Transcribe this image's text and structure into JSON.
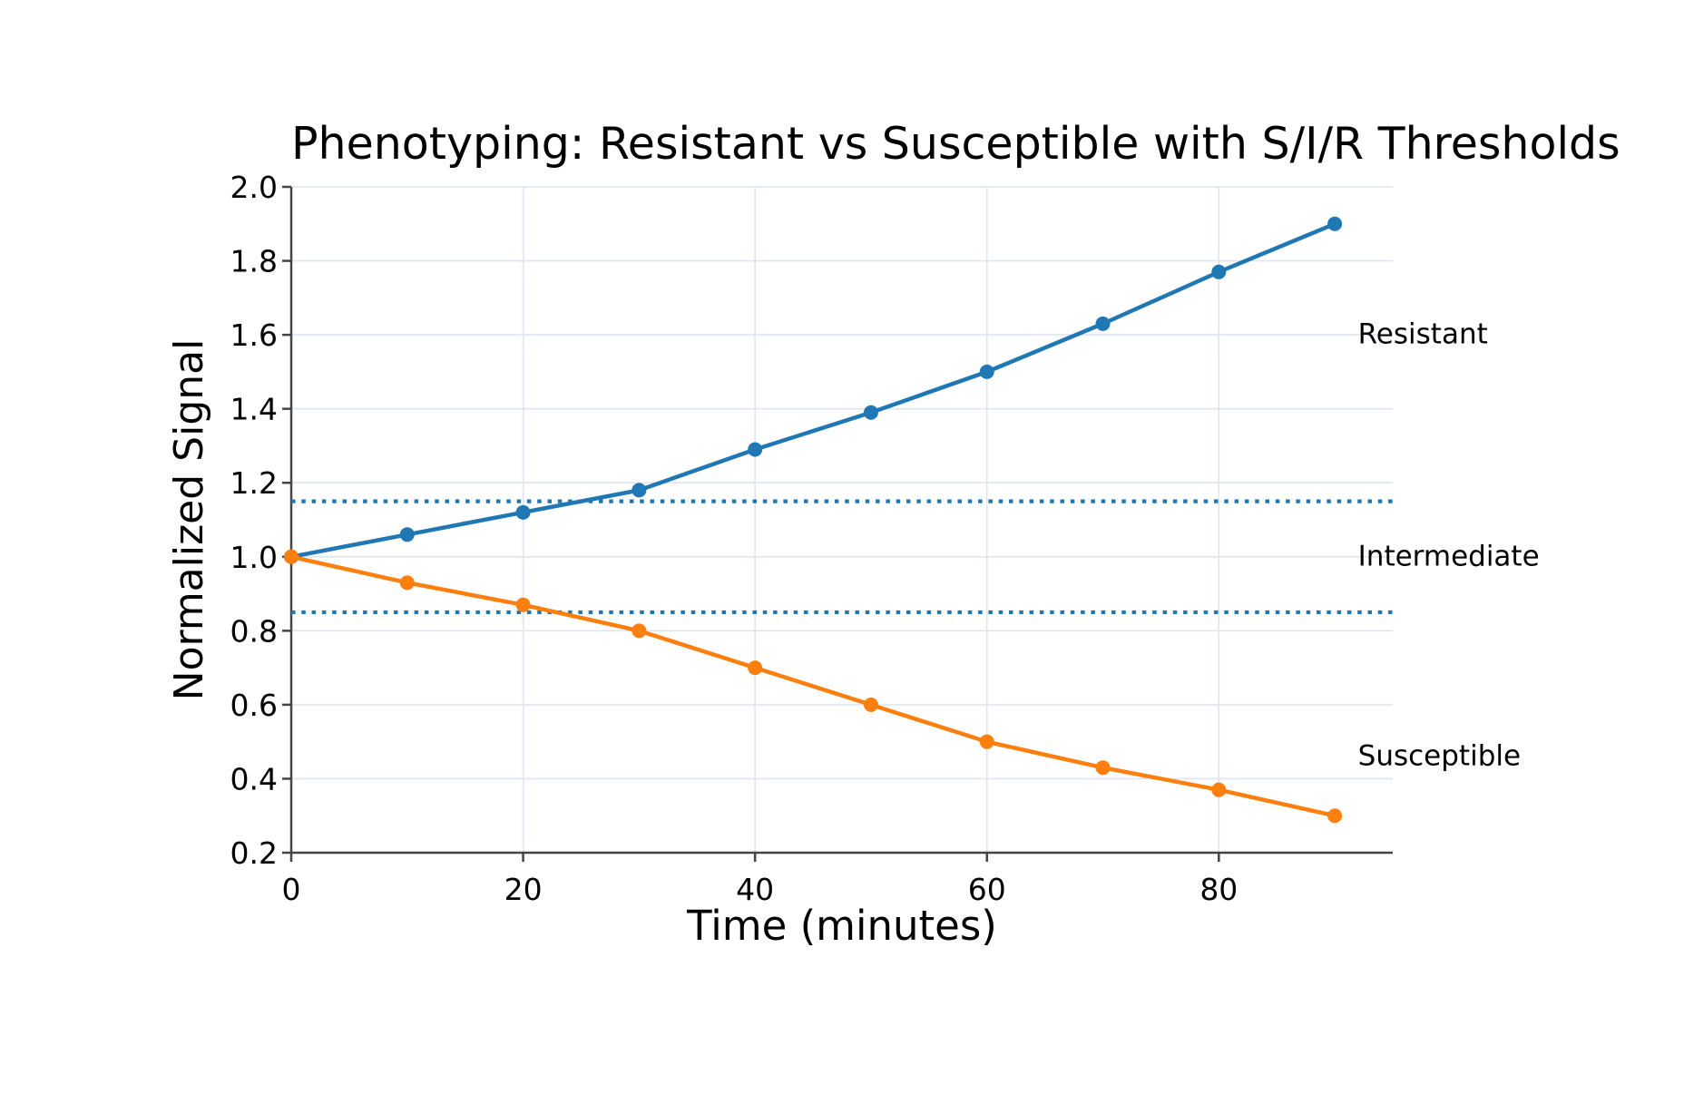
{
  "chart_data": {
    "type": "line",
    "title": "Phenotyping: Resistant vs Susceptible with S/I/R Thresholds",
    "xlabel": "Time (minutes)",
    "ylabel": "Normalized Signal",
    "x": [
      0,
      10,
      20,
      30,
      40,
      50,
      60,
      70,
      80,
      90
    ],
    "series": [
      {
        "name": "Resistant",
        "color": "#1f77b4",
        "marker": "circle",
        "values": [
          1.0,
          1.06,
          1.12,
          1.18,
          1.29,
          1.39,
          1.5,
          1.63,
          1.77,
          1.9
        ]
      },
      {
        "name": "Susceptible",
        "color": "#ff7f0e",
        "marker": "circle",
        "values": [
          1.0,
          0.93,
          0.87,
          0.8,
          0.7,
          0.6,
          0.5,
          0.43,
          0.37,
          0.3
        ]
      }
    ],
    "thresholds": [
      {
        "value": 1.15,
        "color": "#1f77b4",
        "style": "dotted"
      },
      {
        "value": 0.85,
        "color": "#1f77b4",
        "style": "dotted"
      }
    ],
    "annotations": [
      {
        "text": "Resistant",
        "x": 92,
        "y": 1.6
      },
      {
        "text": "Intermediate",
        "x": 92,
        "y": 1.0
      },
      {
        "text": "Susceptible",
        "x": 92,
        "y": 0.46
      }
    ],
    "xlim": [
      0,
      95
    ],
    "ylim": [
      0.2,
      2.0
    ],
    "xticks": [
      0,
      20,
      40,
      60,
      80
    ],
    "xtick_labels": [
      "0",
      "20",
      "40",
      "60",
      "80"
    ],
    "yticks": [
      0.2,
      0.4,
      0.6,
      0.8,
      1.0,
      1.2,
      1.4,
      1.6,
      1.8,
      2.0
    ],
    "ytick_labels": [
      "0.2",
      "0.4",
      "0.6",
      "0.8",
      "1.0",
      "1.2",
      "1.4",
      "1.6",
      "1.8",
      "2.0"
    ],
    "grid": true,
    "legend": false,
    "grid_color": "#dfe4f0",
    "spine_color": "#444444",
    "text_color": "#000000"
  }
}
